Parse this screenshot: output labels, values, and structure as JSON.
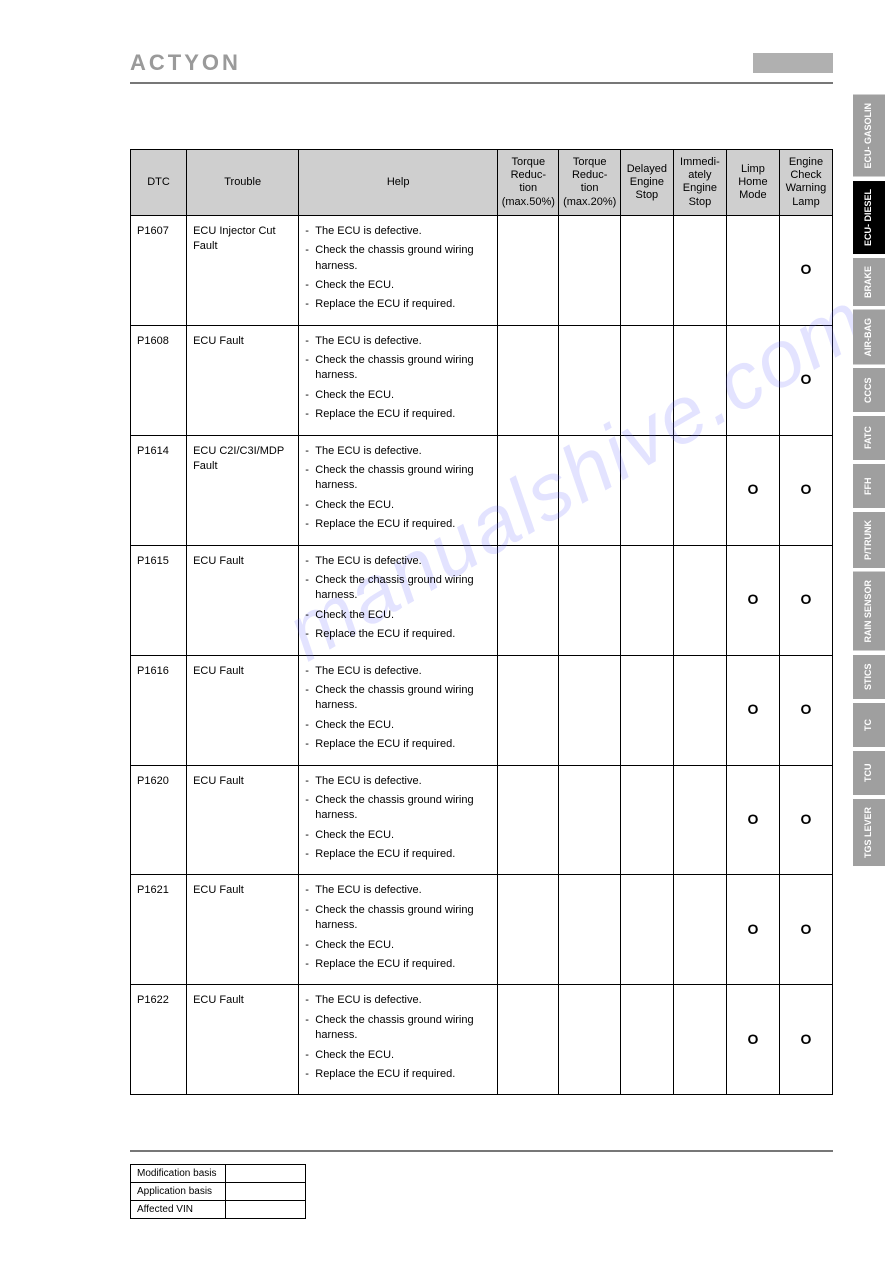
{
  "brand": "ACTYON",
  "watermark": "manualshive.com",
  "columns": {
    "dtc": "DTC",
    "trouble": "Trouble",
    "help": "Help",
    "tr50": "Torque Reduc- tion (max.50%)",
    "tr20": "Torque Reduc- tion (max.20%)",
    "delayed": "Delayed Engine Stop",
    "immediate": "Immedi- ately Engine Stop",
    "limp": "Limp Home Mode",
    "lamp": "Engine Check Warning Lamp"
  },
  "help_items": {
    "a": "The ECU is defective.",
    "b": "Check the chassis ground wiring harness.",
    "c": "Check the ECU.",
    "d": "Replace the ECU if required."
  },
  "rows": [
    {
      "dtc": "P1607",
      "trouble": "ECU Injector Cut Fault",
      "limp": "",
      "lamp": "O"
    },
    {
      "dtc": "P1608",
      "trouble": "ECU Fault",
      "limp": "",
      "lamp": "O"
    },
    {
      "dtc": "P1614",
      "trouble": "ECU C2I/C3I/MDP Fault",
      "limp": "O",
      "lamp": "O"
    },
    {
      "dtc": "P1615",
      "trouble": "ECU Fault",
      "limp": "O",
      "lamp": "O"
    },
    {
      "dtc": "P1616",
      "trouble": "ECU Fault",
      "limp": "O",
      "lamp": "O"
    },
    {
      "dtc": "P1620",
      "trouble": "ECU Fault",
      "limp": "O",
      "lamp": "O"
    },
    {
      "dtc": "P1621",
      "trouble": "ECU Fault",
      "limp": "O",
      "lamp": "O"
    },
    {
      "dtc": "P1622",
      "trouble": "ECU Fault",
      "limp": "O",
      "lamp": "O"
    }
  ],
  "tabs": [
    {
      "label": "ECU- GASOLIN",
      "active": false
    },
    {
      "label": "ECU- DIESEL",
      "active": true
    },
    {
      "label": "BRAKE",
      "active": false
    },
    {
      "label": "AIR-BAG",
      "active": false
    },
    {
      "label": "CCCS",
      "active": false
    },
    {
      "label": "FATC",
      "active": false
    },
    {
      "label": "FFH",
      "active": false
    },
    {
      "label": "P/TRUNK",
      "active": false
    },
    {
      "label": "RAIN SENSOR",
      "active": false
    },
    {
      "label": "STICS",
      "active": false
    },
    {
      "label": "TC",
      "active": false
    },
    {
      "label": "TCU",
      "active": false
    },
    {
      "label": "TGS LEVER",
      "active": false
    }
  ],
  "meta": {
    "mod": "Modification basis",
    "app": "Application basis",
    "vin": "Affected VIN"
  }
}
